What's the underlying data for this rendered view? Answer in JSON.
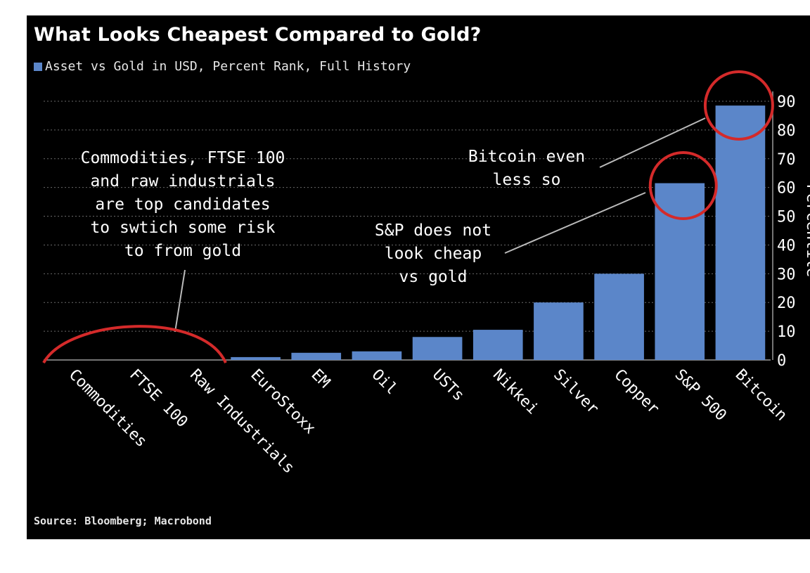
{
  "chart_data": {
    "type": "bar",
    "title": "What Looks Cheapest Compared to Gold?",
    "legend": "Asset vs Gold in USD, Percent Rank, Full History",
    "ylabel": "Percentile",
    "ylim": [
      0,
      90
    ],
    "yticks": [
      0,
      10,
      20,
      30,
      40,
      50,
      60,
      70,
      80,
      90
    ],
    "categories": [
      "Commodities",
      "FTSE 100",
      "Raw Industrials",
      "EuroStoxx",
      "EM",
      "Oil",
      "USTs",
      "Nikkei",
      "Silver",
      "Copper",
      "S&P 500",
      "Bitcoin"
    ],
    "values": [
      0,
      0,
      0,
      1,
      2.5,
      3,
      8,
      10.5,
      20,
      30,
      61.5,
      88.5
    ],
    "annotations": [
      {
        "name": "commodities",
        "lines": [
          "Commodities, FTSE 100",
          "and raw industrials",
          "are top candidates",
          "to swtich some risk",
          "to from gold"
        ]
      },
      {
        "name": "sp500",
        "lines": [
          "S&P does not",
          "look cheap",
          "vs gold"
        ]
      },
      {
        "name": "bitcoin",
        "lines": [
          "Bitcoin even",
          "less so"
        ]
      }
    ],
    "source": "Source: Bloomberg; Macrobond",
    "colors": {
      "bar": "#5b86c9",
      "highlight": "#d42a2a",
      "grid": "#6a6a6a",
      "text": "#ffffff",
      "background": "#000000"
    }
  }
}
